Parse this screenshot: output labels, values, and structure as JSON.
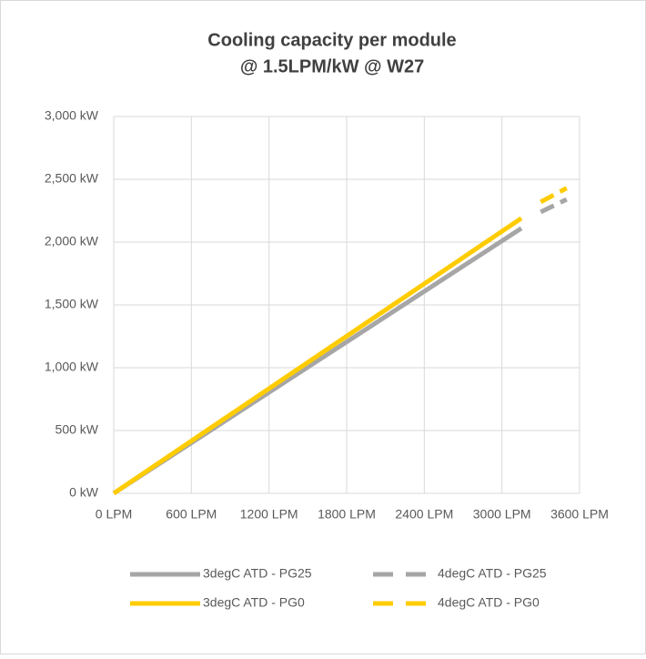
{
  "chart_data": {
    "type": "line",
    "title": [
      "Cooling capacity per module",
      "@ 1.5LPM/kW @ W27"
    ],
    "xlim": [
      0,
      3600
    ],
    "xticks": [
      {
        "value": 0,
        "label": "0 LPM"
      },
      {
        "value": 600,
        "label": "600 LPM"
      },
      {
        "value": 1200,
        "label": "1200 LPM"
      },
      {
        "value": 1800,
        "label": "1800 LPM"
      },
      {
        "value": 2400,
        "label": "2400 LPM"
      },
      {
        "value": 3000,
        "label": "3000 LPM"
      },
      {
        "value": 3600,
        "label": "3600 LPM"
      }
    ],
    "ylim": [
      0,
      3000
    ],
    "yticks": [
      {
        "value": 0,
        "label": "0 kW"
      },
      {
        "value": 500,
        "label": "500 kW"
      },
      {
        "value": 1000,
        "label": "1,000 kW"
      },
      {
        "value": 1500,
        "label": "1,500 kW"
      },
      {
        "value": 2000,
        "label": "2,000 kW"
      },
      {
        "value": 2500,
        "label": "2,500 kW"
      },
      {
        "value": 3000,
        "label": "3,000 kW"
      }
    ],
    "grid": true,
    "legend": "bottom",
    "series": [
      {
        "name": "3degC ATD - PG25",
        "color": "#a6a6a6",
        "dashed": false,
        "x": [
          0,
          3150
        ],
        "values": [
          0,
          2110
        ]
      },
      {
        "name": "4degC ATD - PG25",
        "color": "#a6a6a6",
        "dashed": true,
        "x": [
          3300,
          3500
        ],
        "values": [
          2240,
          2340
        ]
      },
      {
        "name": "3degC ATD - PG0",
        "color": "#ffcc00",
        "dashed": false,
        "x": [
          0,
          3150
        ],
        "values": [
          0,
          2190
        ]
      },
      {
        "name": "4degC ATD - PG0",
        "color": "#ffcc00",
        "dashed": true,
        "x": [
          3300,
          3500
        ],
        "values": [
          2320,
          2430
        ]
      }
    ]
  }
}
